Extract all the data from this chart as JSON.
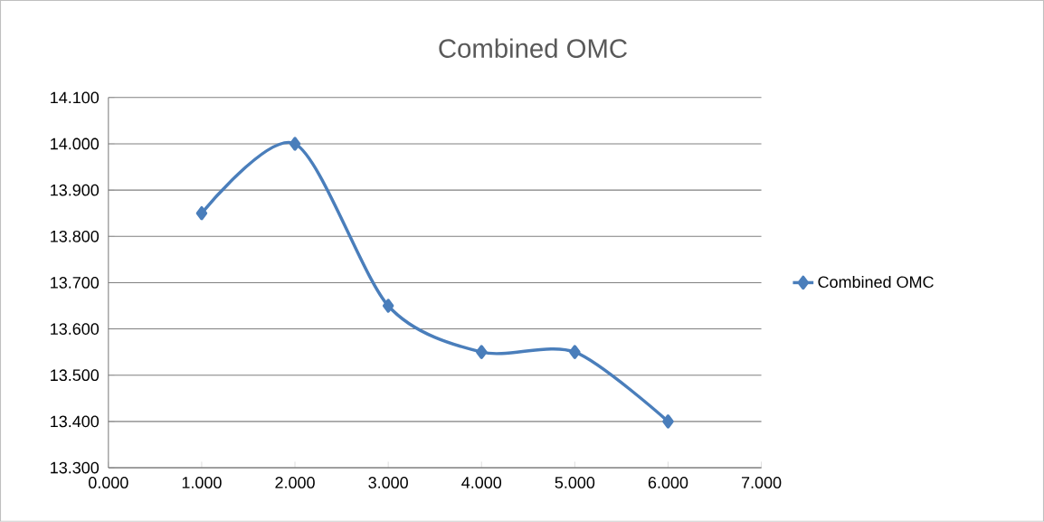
{
  "chart_data": {
    "type": "line",
    "title": "Combined OMC",
    "x": [
      1,
      2,
      3,
      4,
      5,
      6
    ],
    "series": [
      {
        "name": "Combined OMC",
        "color": "#4a7ebb",
        "values": [
          13.85,
          14.0,
          13.65,
          13.55,
          13.55,
          13.4
        ]
      }
    ],
    "xlim": [
      0,
      7
    ],
    "xticks": [
      {
        "value": 0,
        "label": "0.000"
      },
      {
        "value": 1,
        "label": "1.000"
      },
      {
        "value": 2,
        "label": "2.000"
      },
      {
        "value": 3,
        "label": "3.000"
      },
      {
        "value": 4,
        "label": "4.000"
      },
      {
        "value": 5,
        "label": "5.000"
      },
      {
        "value": 6,
        "label": "6.000"
      },
      {
        "value": 7,
        "label": "7.000"
      }
    ],
    "ylim": [
      13.3,
      14.1
    ],
    "yticks": [
      {
        "value": 13.3,
        "label": "13.300"
      },
      {
        "value": 13.4,
        "label": "13.400"
      },
      {
        "value": 13.5,
        "label": "13.500"
      },
      {
        "value": 13.6,
        "label": "13.600"
      },
      {
        "value": 13.7,
        "label": "13.700"
      },
      {
        "value": 13.8,
        "label": "13.800"
      },
      {
        "value": 13.9,
        "label": "13.900"
      },
      {
        "value": 14.0,
        "label": "14.000"
      },
      {
        "value": 14.1,
        "label": "14.100"
      }
    ],
    "grid": "y",
    "legend": "right",
    "marker": "diamond",
    "line_style": "solid"
  }
}
